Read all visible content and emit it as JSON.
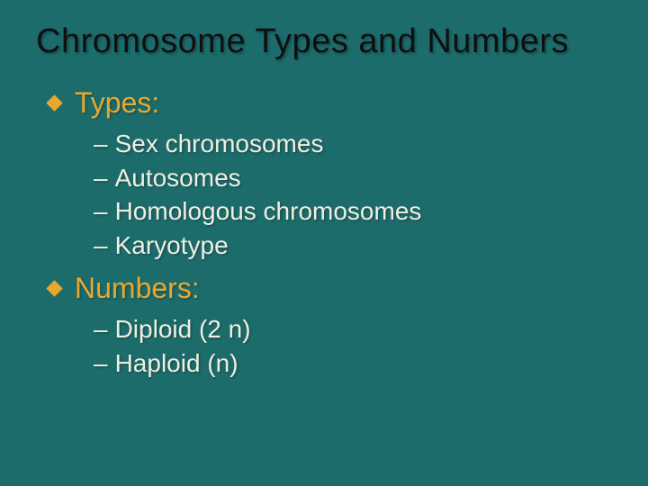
{
  "colors": {
    "slide_bg": "#1c6c6c",
    "title_color": "#0f0f0f",
    "header_color": "#e8a830",
    "subitem_color": "#f0eee0",
    "bullet_color": "#e8a830"
  },
  "typography": {
    "title_fontsize": 38,
    "header_fontsize": 32,
    "subitem_fontsize": 28,
    "font_family": "Arial"
  },
  "title": "Chromosome Types and Numbers",
  "sections": [
    {
      "header": "Types:",
      "items": [
        "Sex chromosomes",
        "Autosomes",
        "Homologous chromosomes",
        "Karyotype"
      ]
    },
    {
      "header": "Numbers:",
      "items": [
        "Diploid (2 n)",
        "Haploid (n)"
      ]
    }
  ]
}
